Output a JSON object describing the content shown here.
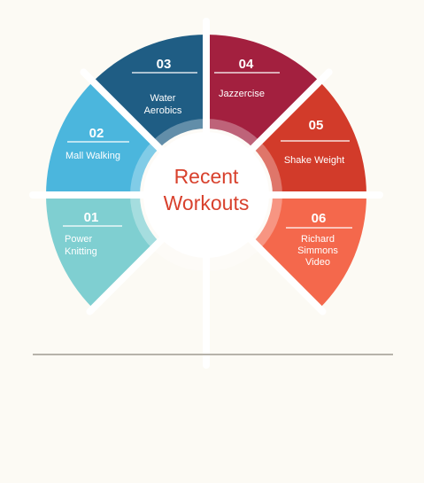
{
  "title_lines": [
    "Recent",
    "Workouts"
  ],
  "segments": [
    {
      "number": "01",
      "label_lines": [
        "Power",
        "Knitting"
      ],
      "color": "#7fcfd1"
    },
    {
      "number": "02",
      "label_lines": [
        "Mall Walking"
      ],
      "color": "#4bb6dd"
    },
    {
      "number": "03",
      "label_lines": [
        "Water",
        "Aerobics"
      ],
      "color": "#1f5d84"
    },
    {
      "number": "04",
      "label_lines": [
        "Jazzercise"
      ],
      "color": "#a3203f"
    },
    {
      "number": "05",
      "label_lines": [
        "Shake Weight"
      ],
      "color": "#d23b2a"
    },
    {
      "number": "06",
      "label_lines": [
        "Richard",
        "Simmons",
        "Video"
      ],
      "color": "#f4684c"
    }
  ],
  "colors": {
    "background": "#fcfaf4",
    "title": "#d8412d",
    "baseline": "#b6b2aa"
  }
}
